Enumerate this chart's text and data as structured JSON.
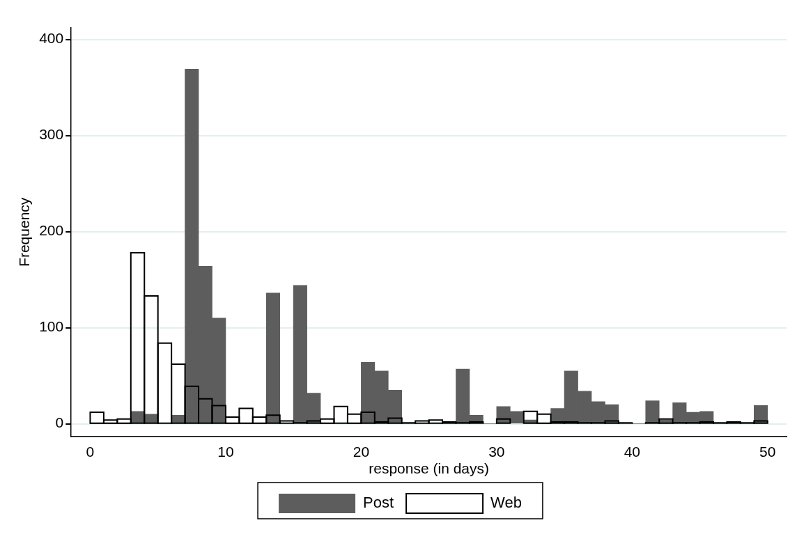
{
  "chart_data": {
    "type": "histogram",
    "xlabel": "response (in days)",
    "ylabel": "Frequency",
    "bins": [
      0,
      1,
      2,
      3,
      4,
      5,
      6,
      7,
      8,
      9,
      10,
      11,
      12,
      13,
      14,
      15,
      16,
      17,
      18,
      19,
      20,
      21,
      22,
      23,
      24,
      25,
      26,
      27,
      28,
      29,
      30,
      31,
      32,
      33,
      34,
      35,
      36,
      37,
      38,
      39,
      40,
      41,
      42,
      43,
      44,
      45,
      46,
      47,
      48,
      49,
      50
    ],
    "series": [
      {
        "name": "Post",
        "color": "#5d5d5d",
        "values": [
          0,
          0,
          0,
          13,
          10,
          1,
          9,
          369,
          164,
          110,
          0,
          0,
          0,
          136,
          null,
          144,
          32,
          0,
          null,
          0,
          64,
          55,
          35,
          null,
          null,
          1,
          1,
          57,
          9,
          0,
          18,
          13,
          4,
          0,
          16,
          55,
          34,
          23,
          20,
          null,
          0,
          24,
          4,
          22,
          12,
          13,
          null,
          1,
          null,
          19
        ]
      },
      {
        "name": "Web",
        "color": "#000000",
        "values": [
          12,
          4,
          5,
          178,
          133,
          84,
          62,
          39,
          26,
          19,
          7,
          16,
          7,
          9,
          3,
          1,
          3,
          5,
          18,
          10,
          12,
          2,
          6,
          1,
          3,
          4,
          2,
          1,
          2,
          0,
          5,
          0,
          13,
          10,
          2,
          2,
          1,
          1,
          3,
          1,
          0,
          1,
          5,
          1,
          1,
          2,
          1,
          2,
          1,
          3
        ]
      }
    ],
    "xlim": [
      -1.4,
      51.4
    ],
    "xticks": [
      0,
      10,
      20,
      30,
      40,
      50
    ],
    "ylim": [
      -13,
      412
    ],
    "yticks": [
      0,
      100,
      200,
      300,
      400
    ],
    "grid": "y",
    "legend": "bottom"
  }
}
